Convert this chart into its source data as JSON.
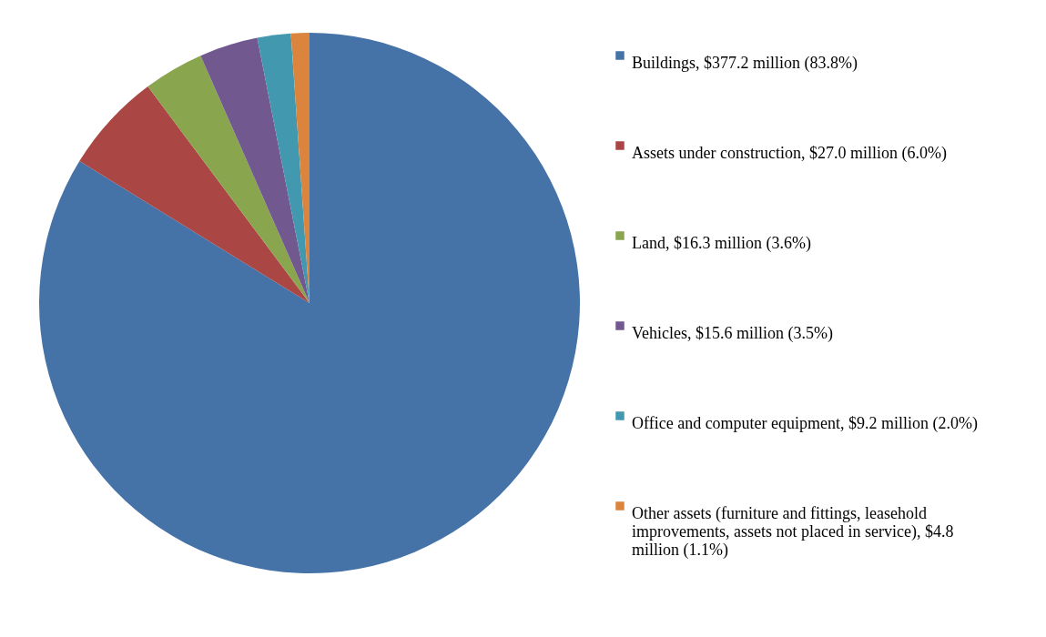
{
  "chart_data": {
    "type": "pie",
    "legend": "right",
    "categories": [
      "Buildings, $377.2 million (83.8%)",
      "Assets under construction, $27.0 million (6.0%)",
      "Land, $16.3 million (3.6%)",
      "Vehicles, $15.6 million (3.5%)",
      "Office and computer equipment, $9.2 million (2.0%)",
      "Other assets (furniture and fittings, leasehold improvements, assets not placed in service), $4.8 million (1.1%)"
    ],
    "values": [
      83.8,
      6.0,
      3.6,
      3.5,
      2.0,
      1.1
    ],
    "colors": [
      "#4572a7",
      "#aa4643",
      "#89a54e",
      "#71588f",
      "#4198af",
      "#db843d"
    ]
  }
}
